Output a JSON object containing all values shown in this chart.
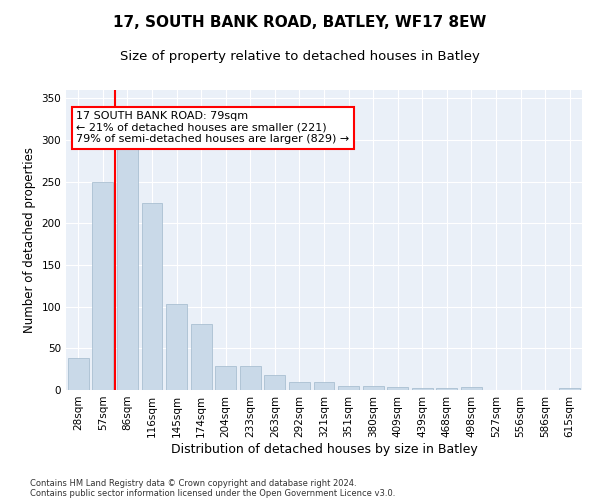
{
  "title": "17, SOUTH BANK ROAD, BATLEY, WF17 8EW",
  "subtitle": "Size of property relative to detached houses in Batley",
  "xlabel": "Distribution of detached houses by size in Batley",
  "ylabel": "Number of detached properties",
  "footnote1": "Contains HM Land Registry data © Crown copyright and database right 2024.",
  "footnote2": "Contains public sector information licensed under the Open Government Licence v3.0.",
  "categories": [
    "28sqm",
    "57sqm",
    "86sqm",
    "116sqm",
    "145sqm",
    "174sqm",
    "204sqm",
    "233sqm",
    "263sqm",
    "292sqm",
    "321sqm",
    "351sqm",
    "380sqm",
    "409sqm",
    "439sqm",
    "468sqm",
    "498sqm",
    "527sqm",
    "556sqm",
    "586sqm",
    "615sqm"
  ],
  "values": [
    38,
    250,
    291,
    225,
    103,
    79,
    29,
    29,
    18,
    10,
    10,
    5,
    5,
    4,
    3,
    3,
    4,
    0,
    0,
    0,
    3
  ],
  "bar_color": "#c9d9e8",
  "bar_edge_color": "#a0b8cc",
  "property_line_color": "red",
  "annotation_text": "17 SOUTH BANK ROAD: 79sqm\n← 21% of detached houses are smaller (221)\n79% of semi-detached houses are larger (829) →",
  "annotation_box_color": "white",
  "annotation_box_edge": "red",
  "ylim": [
    0,
    360
  ],
  "yticks": [
    0,
    50,
    100,
    150,
    200,
    250,
    300,
    350
  ],
  "background_color": "#eaf0f8",
  "grid_color": "white",
  "title_fontsize": 11,
  "subtitle_fontsize": 9.5,
  "axis_label_fontsize": 8.5,
  "tick_fontsize": 7.5,
  "annotation_fontsize": 8,
  "footnote_fontsize": 6
}
